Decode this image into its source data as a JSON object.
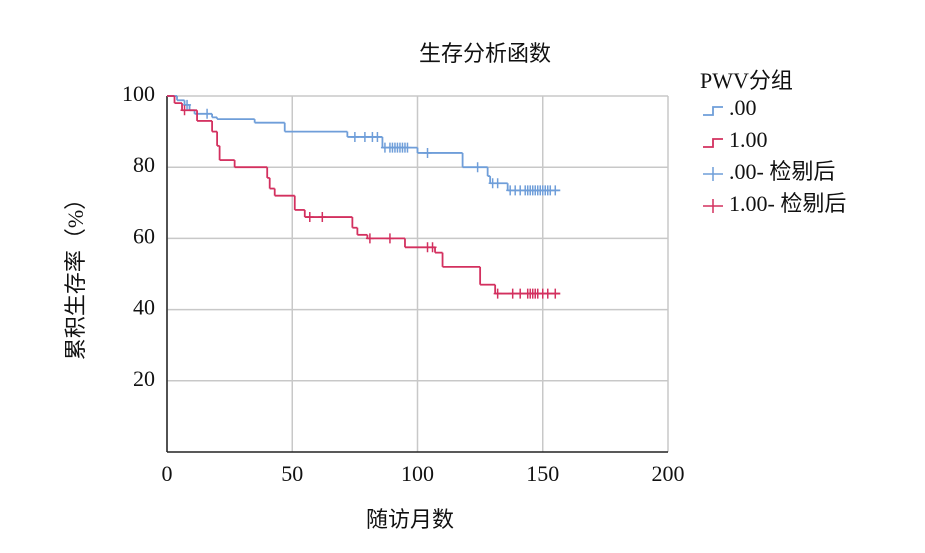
{
  "chart_data": {
    "type": "survival",
    "title": "生存分析函数",
    "x_label": "随访月数",
    "y_label": "累积生存率（%）",
    "legend_title": "PWV分组",
    "legend_position": "right",
    "grid": true,
    "xlim": [
      0,
      200
    ],
    "xticks": [
      0,
      50,
      100,
      150,
      200
    ],
    "ylim": [
      0,
      100
    ],
    "yticks": [
      20,
      40,
      60,
      80,
      100
    ],
    "series": [
      {
        "name": ".00",
        "style": "step",
        "color": "#6f9ed9",
        "x": [
          0,
          4,
          7,
          9,
          11,
          18,
          20,
          35,
          47,
          72,
          86,
          100,
          118,
          128,
          129,
          136,
          157
        ],
        "values": [
          100,
          98.8,
          97.5,
          96,
          95,
          94,
          93.5,
          92.5,
          90,
          88.5,
          85.5,
          84,
          80,
          77.5,
          75.5,
          73.5,
          73.5
        ]
      },
      {
        "name": "1.00",
        "style": "step",
        "color": "#d3305f",
        "x": [
          0,
          3,
          6,
          12,
          18,
          20,
          21,
          27,
          40,
          41,
          43,
          51,
          55,
          74,
          76,
          80,
          95,
          107,
          110,
          125,
          131,
          157
        ],
        "values": [
          100,
          98,
          96,
          93,
          90,
          86,
          82,
          80,
          77,
          74,
          72,
          68,
          66,
          63,
          61,
          60,
          57.5,
          56,
          52,
          47,
          44.5,
          44.5
        ]
      },
      {
        "name": ".00- 检剔后",
        "style": "censor",
        "color": "#6f9ed9",
        "x": [
          8,
          16,
          75,
          79,
          82,
          84,
          87,
          89,
          90,
          91,
          92,
          93,
          94,
          95,
          96,
          104,
          124,
          130,
          132,
          137,
          139,
          141,
          143,
          144,
          145,
          146,
          147,
          148,
          149,
          150,
          151,
          152,
          153,
          155
        ],
        "values": [
          97.5,
          95,
          88.5,
          88.5,
          88.5,
          88.5,
          85.5,
          85.5,
          85.5,
          85.5,
          85.5,
          85.5,
          85.5,
          85.5,
          85.5,
          84,
          80,
          75.5,
          75.5,
          73.5,
          73.5,
          73.5,
          73.5,
          73.5,
          73.5,
          73.5,
          73.5,
          73.5,
          73.5,
          73.5,
          73.5,
          73.5,
          73.5,
          73.5
        ]
      },
      {
        "name": "1.00- 检剔后",
        "style": "censor",
        "color": "#d3305f",
        "x": [
          7,
          57,
          62,
          81,
          89,
          104,
          106,
          132,
          138,
          141,
          144,
          145,
          146,
          147,
          148,
          150,
          152,
          155
        ],
        "values": [
          96,
          66,
          66,
          60,
          60,
          57.5,
          57.5,
          44.5,
          44.5,
          44.5,
          44.5,
          44.5,
          44.5,
          44.5,
          44.5,
          44.5,
          44.5,
          44.5
        ]
      }
    ]
  }
}
